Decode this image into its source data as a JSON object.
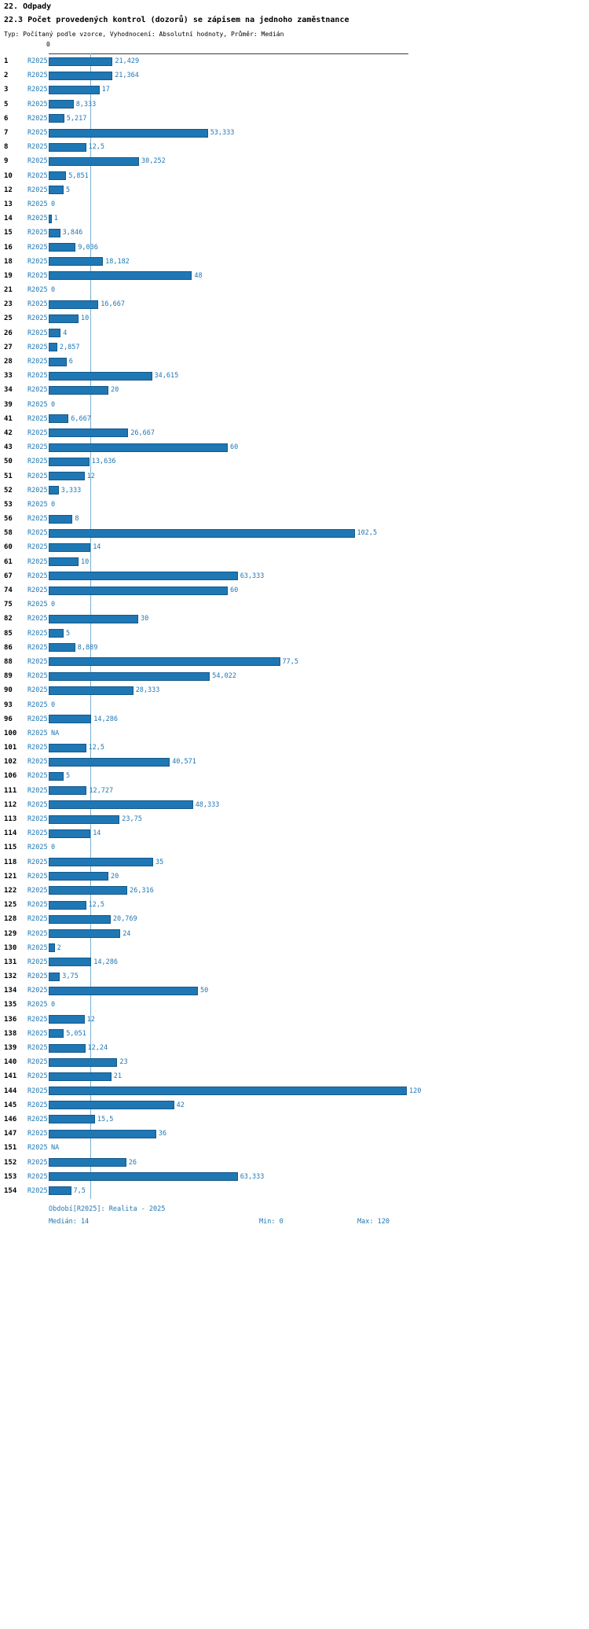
{
  "header": {
    "section": "22. Odpady",
    "title": "22.3 Počet provedených kontrol (dozorů) se zápisem na jednoho zaměstnance",
    "subtitle": "Typ: Počítaný podle vzorce, Vyhodnocení: Absolutní hodnoty, Průměr: Medián"
  },
  "axis": {
    "tick0": "0"
  },
  "footer": {
    "period": "Období[R2025]: Realita - 2025",
    "median": "Medián: 14",
    "min": "Min: 0",
    "max": "Max: 120"
  },
  "chart_data": {
    "type": "bar",
    "orientation": "horizontal",
    "title": "22.3 Počet provedených kontrol (dozorů) se zápisem na jednoho zaměstnance",
    "series_name": "R2025",
    "xlim": [
      0,
      120
    ],
    "median_line_value": 14,
    "stats": {
      "median": 14,
      "min": 0,
      "max": 120
    },
    "colors": {
      "bar": "#1f77b4",
      "bar_border": "#15598c",
      "label_text": "#1f77b4",
      "median_line": "#7bafd4",
      "axis": "#3a3a3a"
    },
    "categories": [
      "1",
      "2",
      "3",
      "5",
      "6",
      "7",
      "8",
      "9",
      "10",
      "12",
      "13",
      "14",
      "15",
      "16",
      "18",
      "19",
      "21",
      "23",
      "25",
      "26",
      "27",
      "28",
      "33",
      "34",
      "39",
      "41",
      "42",
      "43",
      "50",
      "51",
      "52",
      "53",
      "56",
      "58",
      "60",
      "61",
      "67",
      "74",
      "75",
      "82",
      "85",
      "86",
      "88",
      "89",
      "90",
      "93",
      "96",
      "100",
      "101",
      "102",
      "106",
      "111",
      "112",
      "113",
      "114",
      "115",
      "118",
      "121",
      "122",
      "125",
      "128",
      "129",
      "130",
      "131",
      "132",
      "134",
      "135",
      "136",
      "138",
      "139",
      "140",
      "141",
      "144",
      "145",
      "146",
      "147",
      "151",
      "152",
      "153",
      "154"
    ],
    "values": [
      21.429,
      21.364,
      17,
      8.333,
      5.217,
      53.333,
      12.5,
      30.252,
      5.851,
      5,
      0,
      1,
      3.846,
      9.036,
      18.182,
      48,
      0,
      16.667,
      10,
      4,
      2.857,
      6,
      34.615,
      20,
      0,
      6.667,
      26.667,
      60,
      13.636,
      12,
      3.333,
      0,
      8,
      102.5,
      14,
      10,
      63.333,
      60,
      0,
      30,
      5,
      8.889,
      77.5,
      54.022,
      28.333,
      0,
      14.286,
      null,
      12.5,
      40.571,
      5,
      12.727,
      48.333,
      23.75,
      14,
      0,
      35,
      20,
      26.316,
      12.5,
      20.769,
      24,
      2,
      14.286,
      3.75,
      50,
      0,
      12,
      5.051,
      12.24,
      23,
      21,
      120,
      42,
      15.5,
      36,
      null,
      26,
      63.333,
      7.5
    ],
    "value_labels": [
      "21,429",
      "21,364",
      "17",
      "8,333",
      "5,217",
      "53,333",
      "12,5",
      "30,252",
      "5,851",
      "5",
      "0",
      "1",
      "3,846",
      "9,036",
      "18,182",
      "48",
      "0",
      "16,667",
      "10",
      "4",
      "2,857",
      "6",
      "34,615",
      "20",
      "0",
      "6,667",
      "26,667",
      "60",
      "13,636",
      "12",
      "3,333",
      "0",
      "8",
      "102,5",
      "14",
      "10",
      "63,333",
      "60",
      "0",
      "30",
      "5",
      "8,889",
      "77,5",
      "54,022",
      "28,333",
      "0",
      "14,286",
      "NA",
      "12,5",
      "40,571",
      "5",
      "12,727",
      "48,333",
      "23,75",
      "14",
      "0",
      "35",
      "20",
      "26,316",
      "12,5",
      "20,769",
      "24",
      "2",
      "14,286",
      "3,75",
      "50",
      "0",
      "12",
      "5,051",
      "12,24",
      "23",
      "21",
      "120",
      "42",
      "15,5",
      "36",
      "NA",
      "26",
      "63,333",
      "7,5"
    ]
  }
}
